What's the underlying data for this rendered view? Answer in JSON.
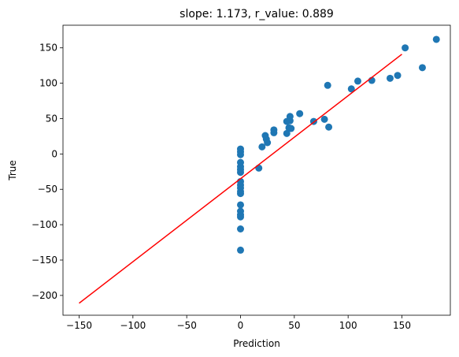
{
  "chart_data": {
    "type": "scatter",
    "title": "slope: 1.173, r_value: 0.889",
    "xlabel": "Prediction",
    "ylabel": "True",
    "xlim": [
      -165,
      195
    ],
    "ylim": [
      -228,
      182
    ],
    "x_ticks": [
      -150,
      -100,
      -50,
      0,
      50,
      100,
      150
    ],
    "y_ticks": [
      -200,
      -150,
      -100,
      -50,
      0,
      50,
      100,
      150
    ],
    "grid": false,
    "legend": "none",
    "colors": {
      "points": "#1f77b4",
      "line": "#ff0000"
    },
    "points": [
      {
        "x": 0,
        "y": 7
      },
      {
        "x": 0,
        "y": 3
      },
      {
        "x": 0,
        "y": -1
      },
      {
        "x": 0,
        "y": -12
      },
      {
        "x": 0,
        "y": -18
      },
      {
        "x": 0,
        "y": -22
      },
      {
        "x": 0,
        "y": -26
      },
      {
        "x": 0,
        "y": -39
      },
      {
        "x": 0,
        "y": -44
      },
      {
        "x": 0,
        "y": -48
      },
      {
        "x": 0,
        "y": -53
      },
      {
        "x": 0,
        "y": -56
      },
      {
        "x": 0,
        "y": -72
      },
      {
        "x": 0,
        "y": -81
      },
      {
        "x": 0,
        "y": -86
      },
      {
        "x": 0,
        "y": -89
      },
      {
        "x": 0,
        "y": -106
      },
      {
        "x": 0,
        "y": -136
      },
      {
        "x": 17,
        "y": -20
      },
      {
        "x": 20,
        "y": 10
      },
      {
        "x": 23,
        "y": 26
      },
      {
        "x": 24,
        "y": 21
      },
      {
        "x": 25,
        "y": 16
      },
      {
        "x": 31,
        "y": 30
      },
      {
        "x": 31,
        "y": 34
      },
      {
        "x": 43,
        "y": 29
      },
      {
        "x": 43,
        "y": 46
      },
      {
        "x": 45,
        "y": 37
      },
      {
        "x": 46,
        "y": 47
      },
      {
        "x": 46,
        "y": 53
      },
      {
        "x": 47,
        "y": 36
      },
      {
        "x": 55,
        "y": 57
      },
      {
        "x": 68,
        "y": 46
      },
      {
        "x": 78,
        "y": 49
      },
      {
        "x": 81,
        "y": 97
      },
      {
        "x": 82,
        "y": 38
      },
      {
        "x": 103,
        "y": 92
      },
      {
        "x": 109,
        "y": 103
      },
      {
        "x": 122,
        "y": 104
      },
      {
        "x": 139,
        "y": 107
      },
      {
        "x": 146,
        "y": 111
      },
      {
        "x": 153,
        "y": 150
      },
      {
        "x": 169,
        "y": 122
      },
      {
        "x": 182,
        "y": 162
      }
    ],
    "fit_line": {
      "x": [
        -150,
        150
      ],
      "y": [
        -211,
        141
      ]
    }
  }
}
